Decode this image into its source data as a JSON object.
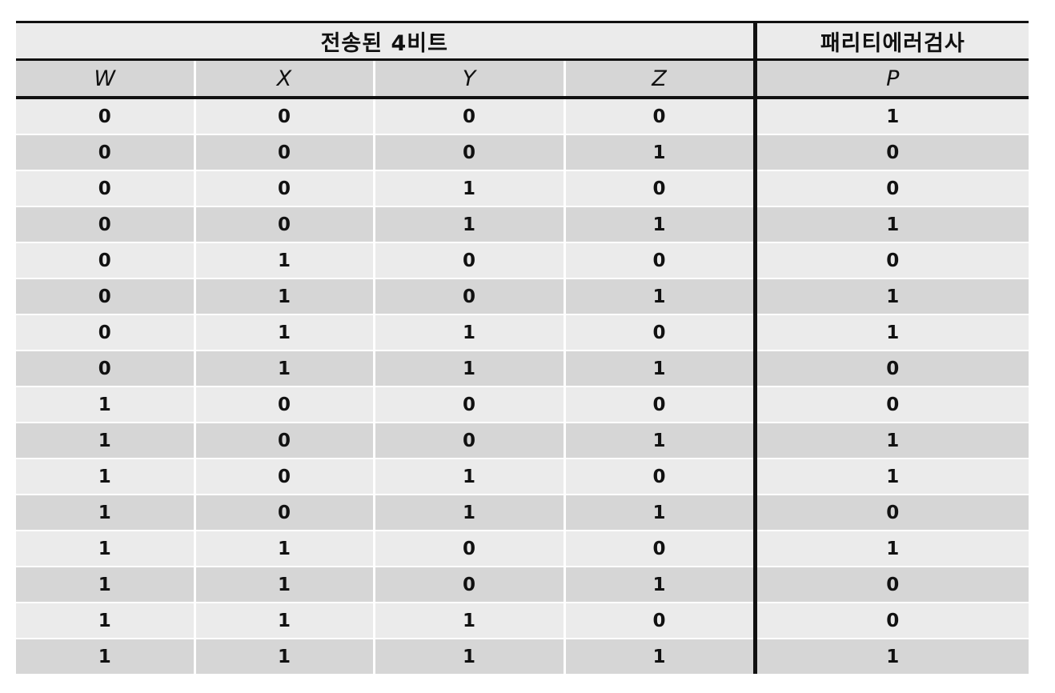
{
  "table": {
    "group_headers": {
      "bits": "전송된 4비트",
      "parity": "패리티에러검사"
    },
    "columns": [
      "W",
      "X",
      "Y",
      "Z",
      "P"
    ],
    "rows": [
      [
        "0",
        "0",
        "0",
        "0",
        "1"
      ],
      [
        "0",
        "0",
        "0",
        "1",
        "0"
      ],
      [
        "0",
        "0",
        "1",
        "0",
        "0"
      ],
      [
        "0",
        "0",
        "1",
        "1",
        "1"
      ],
      [
        "0",
        "1",
        "0",
        "0",
        "0"
      ],
      [
        "0",
        "1",
        "0",
        "1",
        "1"
      ],
      [
        "0",
        "1",
        "1",
        "0",
        "1"
      ],
      [
        "0",
        "1",
        "1",
        "1",
        "0"
      ],
      [
        "1",
        "0",
        "0",
        "0",
        "0"
      ],
      [
        "1",
        "0",
        "0",
        "1",
        "1"
      ],
      [
        "1",
        "0",
        "1",
        "0",
        "1"
      ],
      [
        "1",
        "0",
        "1",
        "1",
        "0"
      ],
      [
        "1",
        "1",
        "0",
        "0",
        "1"
      ],
      [
        "1",
        "1",
        "0",
        "1",
        "0"
      ],
      [
        "1",
        "1",
        "1",
        "0",
        "0"
      ],
      [
        "1",
        "1",
        "1",
        "1",
        "1"
      ]
    ]
  },
  "colors": {
    "row_light": "#ebebeb",
    "row_dark": "#d6d6d6",
    "rule": "#111111"
  }
}
